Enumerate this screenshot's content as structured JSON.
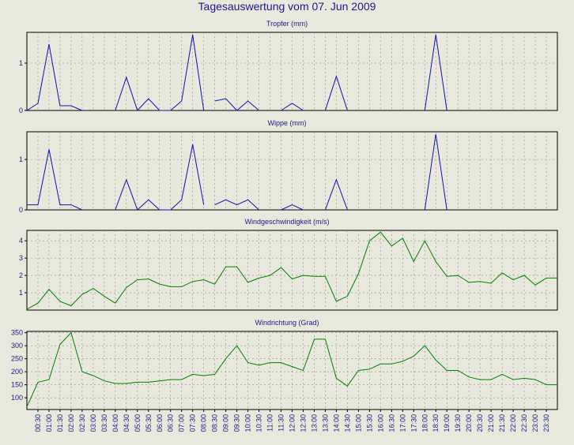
{
  "page": {
    "title": "Tagesauswertung vom 07. Jun 2009"
  },
  "colors": {
    "background": "#e9e8dc",
    "text": "#1a1a8c",
    "precip_line": "#1010b0",
    "wind_line": "#008000",
    "grid": "#8a8a8a",
    "frame": "#000000"
  },
  "chart_data": [
    {
      "type": "line",
      "title": "Tropfer (mm)",
      "color": "#1010b0",
      "ylim": [
        0,
        1.65
      ],
      "yticks": [
        0,
        1
      ],
      "grid": true,
      "x": [
        "00:00",
        "00:30",
        "01:00",
        "01:30",
        "02:00",
        "02:30",
        "03:00",
        "03:30",
        "04:00",
        "04:30",
        "05:00",
        "05:30",
        "06:00",
        "06:30",
        "07:00",
        "07:30",
        "08:00",
        "08:30",
        "09:00",
        "09:30",
        "10:00",
        "10:30",
        "11:00",
        "11:30",
        "12:00",
        "12:30",
        "13:00",
        "13:30",
        "14:00",
        "14:30",
        "15:00",
        "15:30",
        "16:00",
        "16:30",
        "17:00",
        "17:30",
        "18:00",
        "18:30",
        "19:00",
        "19:30",
        "20:00",
        "20:30",
        "21:00",
        "21:30",
        "22:00",
        "22:30",
        "23:00",
        "23:30",
        "24:00"
      ],
      "values": [
        0,
        0.15,
        1.4,
        0.1,
        0.1,
        0,
        0,
        0,
        0,
        0.7,
        0,
        0.25,
        0,
        0,
        0.2,
        1.6,
        0,
        0.2,
        0.25,
        0,
        0.2,
        0,
        0,
        0,
        0.15,
        0,
        0,
        0,
        0.72,
        0,
        0,
        0,
        0,
        0,
        0,
        0,
        0,
        1.6,
        0,
        0,
        0,
        0,
        0,
        0,
        0,
        0,
        0,
        0,
        0
      ],
      "segments_drawn": [
        [
          0,
          5
        ],
        [
          8,
          16
        ],
        [
          17,
          21
        ],
        [
          23,
          25
        ],
        [
          27,
          29
        ],
        [
          36,
          38
        ]
      ]
    },
    {
      "type": "line",
      "title": "Wippe (mm)",
      "color": "#1010b0",
      "ylim": [
        0,
        1.55
      ],
      "yticks": [
        0,
        1
      ],
      "grid": true,
      "values": [
        0.1,
        0.1,
        1.2,
        0.1,
        0.1,
        0,
        0,
        0,
        0,
        0.6,
        0,
        0.2,
        0,
        0,
        0.2,
        1.3,
        0.1,
        0.1,
        0.2,
        0.1,
        0.2,
        0,
        0,
        0,
        0.1,
        0,
        0,
        0,
        0.6,
        0,
        0,
        0,
        0,
        0,
        0,
        0,
        0,
        1.5,
        0,
        0,
        0,
        0,
        0,
        0,
        0,
        0,
        0,
        0,
        0
      ],
      "segments_drawn": [
        [
          0,
          5
        ],
        [
          8,
          16
        ],
        [
          17,
          21
        ],
        [
          23,
          25
        ],
        [
          27,
          29
        ],
        [
          36,
          38
        ]
      ]
    },
    {
      "type": "line",
      "title": "Windgeschwindigkeit (m/s)",
      "color": "#008000",
      "ylim": [
        0,
        4.6
      ],
      "yticks": [
        1,
        2,
        3,
        4
      ],
      "grid": true,
      "values": [
        0.05,
        0.4,
        1.2,
        0.5,
        0.25,
        0.9,
        1.25,
        0.8,
        0.4,
        1.3,
        1.75,
        1.8,
        1.5,
        1.35,
        1.35,
        1.65,
        1.75,
        1.5,
        2.5,
        2.5,
        1.6,
        1.85,
        2.0,
        2.45,
        1.8,
        2.0,
        1.95,
        1.95,
        0.5,
        0.8,
        2.1,
        4.0,
        4.5,
        3.7,
        4.15,
        2.8,
        4.0,
        2.8,
        1.95,
        2.0,
        1.6,
        1.65,
        1.55,
        2.15,
        1.75,
        2.0,
        1.45,
        1.85,
        1.85
      ]
    },
    {
      "type": "line",
      "title": "Windrichtung (Grad)",
      "color": "#008000",
      "ylim": [
        55,
        355
      ],
      "yticks": [
        100,
        150,
        200,
        250,
        300,
        350
      ],
      "grid": true,
      "values": [
        65,
        160,
        170,
        305,
        350,
        200,
        185,
        165,
        155,
        155,
        160,
        160,
        165,
        170,
        170,
        190,
        185,
        190,
        250,
        300,
        235,
        225,
        235,
        235,
        220,
        205,
        325,
        325,
        175,
        145,
        205,
        210,
        230,
        230,
        240,
        260,
        300,
        245,
        205,
        205,
        180,
        170,
        170,
        190,
        170,
        175,
        170,
        150,
        150
      ]
    }
  ],
  "x_axis": {
    "tick_labels": [
      "00:30",
      "01:00",
      "01:30",
      "02:00",
      "02:30",
      "03:00",
      "03:30",
      "04:00",
      "04:30",
      "05:00",
      "05:30",
      "06:00",
      "06:30",
      "07:00",
      "07:30",
      "08:00",
      "08:30",
      "09:00",
      "09:30",
      "10:00",
      "10:30",
      "11:00",
      "11:30",
      "12:00",
      "12:30",
      "13:00",
      "13:30",
      "14:00",
      "14:30",
      "15:00",
      "15:30",
      "16:00",
      "16:30",
      "17:00",
      "17:30",
      "18:00",
      "18:30",
      "19:00",
      "19:30",
      "20:00",
      "20:30",
      "21:00",
      "21:30",
      "22:00",
      "22:30",
      "23:00",
      "23:30"
    ]
  }
}
